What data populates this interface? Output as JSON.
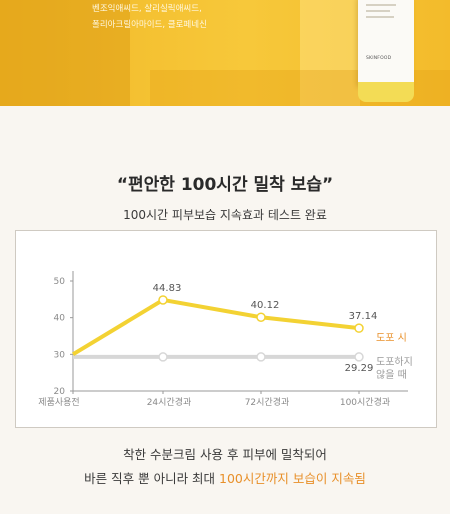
{
  "banner": {
    "ingredients": [
      "벤조익애씨드, 살리실릭애씨드,",
      "폴리아크릴아마이드, 클로페네신"
    ],
    "product_brand": "SKINFOOD"
  },
  "headline": "“편안한 100시간 밀착 보습”",
  "subhead": "100시간 피부보습 지속효과 테스트 완료",
  "chart_data": {
    "type": "line",
    "categories": [
      "제품사용전",
      "24시간경과",
      "72시간경과",
      "100시간경과"
    ],
    "yticks": [
      "50",
      "40",
      "30",
      "20"
    ],
    "ylim": [
      20,
      50
    ],
    "series": [
      {
        "name": "도포 시",
        "values": [
          30,
          44.83,
          40.12,
          37.14
        ],
        "labels": [
          "",
          "44.83",
          "40.12",
          "37.14"
        ],
        "color": "#f3d233"
      },
      {
        "name": "도포하지 않을 때",
        "values": [
          29.29,
          29.29,
          29.29,
          29.29
        ],
        "labels": [
          "",
          "",
          "",
          "29.29"
        ],
        "color": "#d7d7d7"
      }
    ],
    "legend": {
      "applied": "도포 시",
      "not_applied_line1": "도포하지",
      "not_applied_line2": "않을 때"
    }
  },
  "caption": {
    "line1": "착한 수분크림 사용 후 피부에 밀착되어",
    "line2_prefix": "바른 직후 뿐 아니라 최대 ",
    "line2_highlight": "100시간까지 보습이 지속됨"
  },
  "colors": {
    "accent": "#e8902a",
    "series_yellow": "#f3d233",
    "series_gray": "#d7d7d7"
  }
}
